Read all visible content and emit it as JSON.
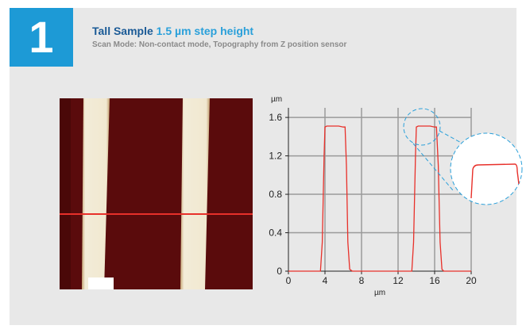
{
  "header": {
    "number": "1",
    "title_main": "Tall Sample",
    "title_highlight": "1.5 µm step height",
    "subtitle": "Scan Mode: Non-contact mode, Topography from Z position sensor"
  },
  "colors": {
    "badge": "#1d9ad6",
    "title": "#1a5a96",
    "highlight": "#2aa0da",
    "trace": "#e8302a",
    "grid": "#9a9a9a",
    "afm_dark": "#5a0b0c",
    "afm_light": "#f3ecd8",
    "zoom_ring": "#2aa0da"
  },
  "chart_data": {
    "type": "line",
    "x_label": "µm",
    "y_label": "µm",
    "xlim": [
      0,
      20
    ],
    "ylim": [
      0,
      1.7
    ],
    "x_ticks": [
      0,
      4,
      8,
      12,
      16,
      20
    ],
    "y_ticks": [
      0,
      0.4,
      0.8,
      1.2,
      1.6
    ],
    "grid": true,
    "series": [
      {
        "x": [
          0,
          3.5,
          3.7,
          3.9,
          4.0,
          4.2,
          4.6,
          5.0,
          5.5,
          6.0,
          6.2,
          6.35,
          6.5,
          6.7,
          7.0,
          13.5,
          13.7,
          13.9,
          14.0,
          14.2,
          14.6,
          15.0,
          15.5,
          16.0,
          16.2,
          16.4,
          16.6,
          16.8,
          17.0,
          20
        ],
        "y": [
          0.0,
          0.0,
          0.3,
          1.2,
          1.5,
          1.51,
          1.51,
          1.51,
          1.51,
          1.5,
          1.5,
          1.1,
          0.3,
          0.02,
          0.0,
          0.0,
          0.3,
          1.2,
          1.5,
          1.51,
          1.51,
          1.51,
          1.51,
          1.5,
          1.5,
          1.1,
          0.3,
          0.02,
          0.0,
          0.0
        ]
      }
    ]
  }
}
